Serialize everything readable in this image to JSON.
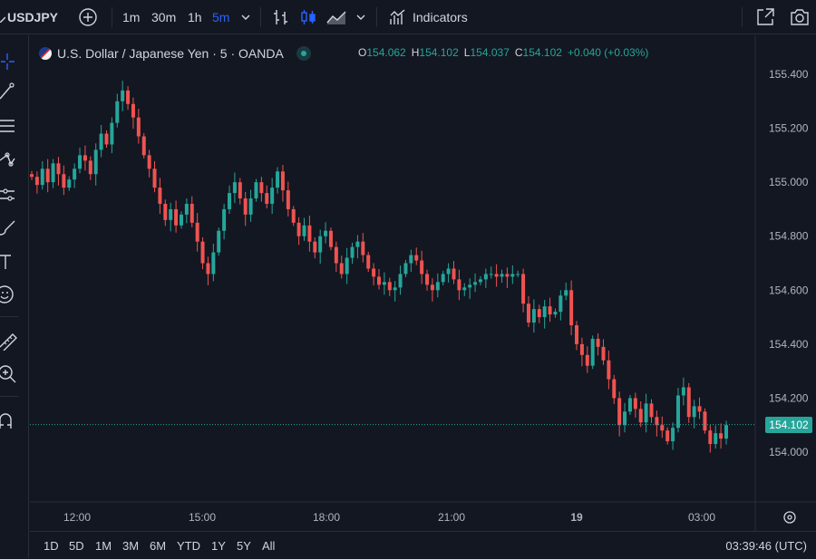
{
  "toolbar": {
    "symbol": "USDJPY",
    "intervals": [
      "1m",
      "30m",
      "1h",
      "5m"
    ],
    "active_interval": "5m",
    "indicators_label": "Indicators"
  },
  "legend": {
    "title": "U.S. Dollar / Japanese Yen · 5 · OANDA",
    "o_label": "O",
    "o_value": "154.062",
    "h_label": "H",
    "h_value": "154.102",
    "l_label": "L",
    "l_value": "154.037",
    "c_label": "C",
    "c_value": "154.102",
    "change": "+0.040 (+0.03%)"
  },
  "price_tag": "154.102",
  "bottom": {
    "ranges": [
      "1D",
      "5D",
      "1M",
      "3M",
      "6M",
      "YTD",
      "1Y",
      "5Y",
      "All"
    ],
    "clock": "03:39:46 (UTC)"
  },
  "colors": {
    "up": "#26a69a",
    "down": "#ef5350",
    "accent": "#2962ff",
    "bg": "#131722"
  },
  "chart_data": {
    "type": "candlestick",
    "y_ticks": [
      "155.400",
      "155.200",
      "155.000",
      "154.800",
      "154.600",
      "154.400",
      "154.200",
      "154.000"
    ],
    "ylim": [
      153.93,
      155.47
    ],
    "x_ticks": [
      "12:00",
      "15:00",
      "18:00",
      "21:00",
      "19",
      "03:00"
    ],
    "last_price": 154.102,
    "close_series": [
      155.02,
      154.99,
      155.05,
      155.0,
      155.07,
      155.03,
      154.98,
      155.01,
      155.05,
      155.1,
      155.08,
      155.03,
      155.12,
      155.18,
      155.14,
      155.22,
      155.3,
      155.34,
      155.29,
      155.24,
      155.17,
      155.1,
      155.05,
      154.98,
      154.92,
      154.86,
      154.9,
      154.84,
      154.88,
      154.92,
      154.85,
      154.78,
      154.7,
      154.66,
      154.74,
      154.82,
      154.9,
      154.96,
      155.0,
      154.94,
      154.88,
      154.94,
      155.0,
      154.96,
      154.92,
      154.98,
      155.04,
      154.97,
      154.9,
      154.85,
      154.8,
      154.84,
      154.78,
      154.74,
      154.8,
      154.82,
      154.76,
      154.7,
      154.66,
      154.72,
      154.76,
      154.78,
      154.73,
      154.68,
      154.65,
      154.62,
      154.63,
      154.6,
      154.61,
      154.66,
      154.7,
      154.73,
      154.71,
      154.66,
      154.62,
      154.6,
      154.63,
      154.66,
      154.68,
      154.64,
      154.6,
      154.61,
      154.62,
      154.63,
      154.64,
      154.66,
      154.66,
      154.65,
      154.66,
      154.65,
      154.66,
      154.66,
      154.55,
      154.48,
      154.53,
      154.5,
      154.54,
      154.51,
      154.52,
      154.58,
      154.6,
      154.47,
      154.4,
      154.36,
      154.32,
      154.42,
      154.39,
      154.34,
      154.27,
      154.2,
      154.1,
      154.15,
      154.2,
      154.16,
      154.11,
      154.18,
      154.13,
      154.1,
      154.08,
      154.04,
      154.09,
      154.21,
      154.24,
      154.13,
      154.17,
      154.15,
      154.08,
      154.03,
      154.07,
      154.05,
      154.1
    ]
  }
}
